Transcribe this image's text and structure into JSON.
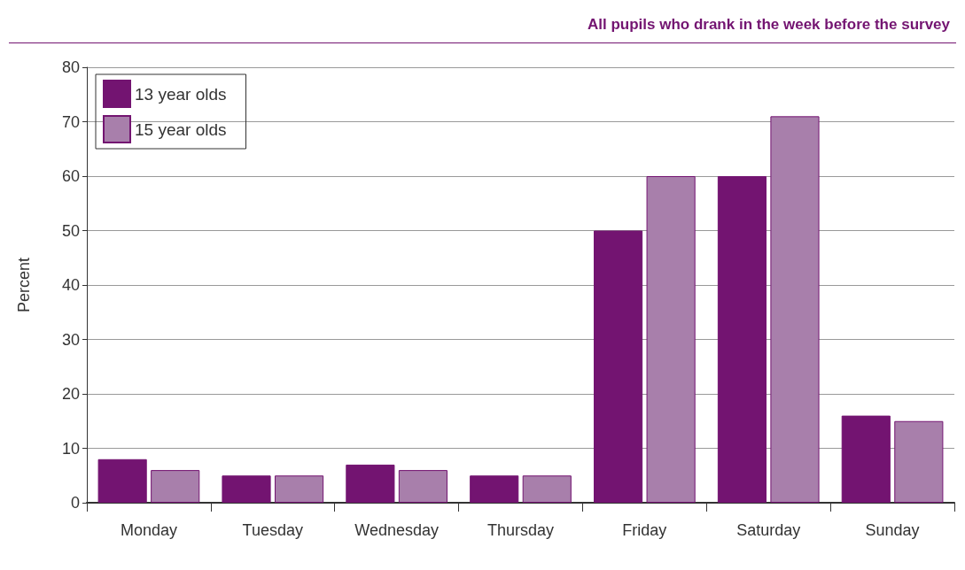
{
  "chart_data": {
    "type": "bar",
    "title": "All pupils who drank in the week before the survey",
    "ylabel": "Percent",
    "categories": [
      "Monday",
      "Tuesday",
      "Wednesday",
      "Thursday",
      "Friday",
      "Saturday",
      "Sunday"
    ],
    "series": [
      {
        "name": "13 year olds",
        "color": "#731471",
        "values": [
          8,
          5,
          7,
          5,
          50,
          60,
          16
        ]
      },
      {
        "name": "15 year olds",
        "color": "#a87fab",
        "values": [
          6,
          5,
          6,
          5,
          60,
          71,
          15
        ]
      }
    ],
    "ylim": [
      0,
      80
    ],
    "yticks": [
      0,
      10,
      20,
      30,
      40,
      50,
      60,
      70,
      80
    ],
    "grid": "y",
    "legend": "top left"
  }
}
